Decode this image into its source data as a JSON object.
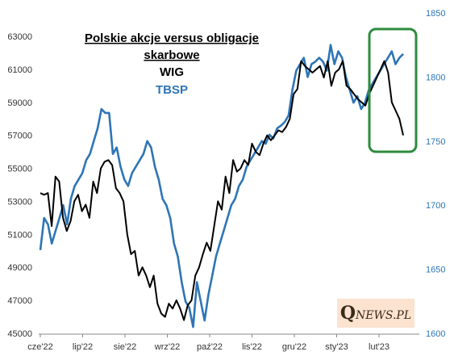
{
  "chart_data": {
    "type": "line",
    "title_line1": "Polskie akcje versus obligacje",
    "title_line2": "skarbowe",
    "x_ticks": [
      "cze'22",
      "lip'22",
      "sie'22",
      "wrz'22",
      "paź'22",
      "lis'22",
      "gru'22",
      "sty'23",
      "lut'23"
    ],
    "left_axis": {
      "min": 45000,
      "max": 63000,
      "ticks": [
        "63000",
        "61000",
        "59000",
        "57000",
        "55000",
        "53000",
        "51000",
        "49000",
        "47000",
        "45000"
      ]
    },
    "right_axis": {
      "min": 1600,
      "max": 1850,
      "ticks": [
        "1850",
        "1800",
        "1750",
        "1700",
        "1650",
        "1600"
      ]
    },
    "series": [
      {
        "name": "WIG",
        "axis": "left",
        "color": "#000000",
        "values": [
          53500,
          53400,
          53500,
          51500,
          54500,
          54200,
          52000,
          51200,
          51800,
          53000,
          53400,
          52400,
          52800,
          52000,
          54200,
          53500,
          55000,
          55400,
          55500,
          55200,
          53800,
          53500,
          53000,
          51000,
          49800,
          50000,
          48500,
          49000,
          48500,
          47800,
          48500,
          46800,
          46200,
          46000,
          46800,
          46500,
          47000,
          46500,
          45800,
          46700,
          47000,
          48500,
          49000,
          49800,
          50500,
          50000,
          51500,
          53000,
          52500,
          54500,
          53500,
          55500,
          54800,
          55000,
          55500,
          55200,
          56500,
          56000,
          55800,
          56500,
          57000,
          56700,
          57000,
          57300,
          57200,
          57500,
          58000,
          59500,
          59800,
          61500,
          61200,
          61000,
          60800,
          61000,
          61200,
          60500,
          61500,
          60000,
          60800,
          61000,
          61500,
          60000,
          59800,
          59500,
          59200,
          59000,
          58800,
          59500,
          60000,
          60500,
          61000,
          61500,
          60800,
          59000,
          58500,
          58000,
          57000
        ]
      },
      {
        "name": "TBSP",
        "axis": "right",
        "color": "#2e75b6",
        "values": [
          1665,
          1690,
          1685,
          1670,
          1680,
          1690,
          1700,
          1685,
          1705,
          1715,
          1720,
          1725,
          1735,
          1740,
          1750,
          1760,
          1775,
          1772,
          1772,
          1740,
          1745,
          1730,
          1720,
          1715,
          1725,
          1730,
          1735,
          1740,
          1750,
          1745,
          1730,
          1720,
          1705,
          1700,
          1690,
          1670,
          1660,
          1640,
          1625,
          1620,
          1605,
          1640,
          1625,
          1610,
          1630,
          1645,
          1660,
          1670,
          1680,
          1690,
          1700,
          1705,
          1715,
          1720,
          1730,
          1735,
          1740,
          1745,
          1750,
          1748,
          1755,
          1752,
          1760,
          1762,
          1765,
          1770,
          1790,
          1805,
          1810,
          1815,
          1800,
          1810,
          1812,
          1815,
          1812,
          1805,
          1825,
          1810,
          1820,
          1815,
          1800,
          1790,
          1780,
          1785,
          1775,
          1780,
          1790,
          1795,
          1800,
          1805,
          1810,
          1815,
          1820,
          1810,
          1815,
          1818
        ]
      }
    ],
    "highlight": {
      "color": "#2e8b3e"
    },
    "grid": false
  },
  "labels": {
    "wig": "WIG",
    "tbsp": "TBSP",
    "wig_color": "#000000",
    "tbsp_color": "#2e75b6"
  },
  "brand": {
    "initial": "Q",
    "rest": "NEWS.PL"
  }
}
